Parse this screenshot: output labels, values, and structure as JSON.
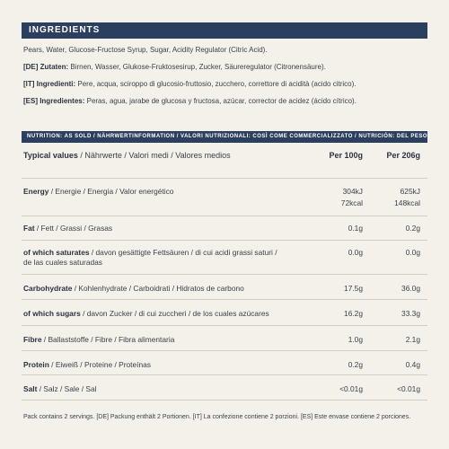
{
  "ingredients_header": "INGREDIENTS",
  "ingredients": {
    "en": "Pears, Water, Glucose-Fructose Syrup, Sugar, Acidity Regulator (Citric Acid).",
    "de_label": "[DE] Zutaten:",
    "de_text": " Birnen, Wasser, Glukose-Fruktosesirup, Zucker, Säureregulator (Citronensäure).",
    "it_label": "[IT] Ingredienti:",
    "it_text": " Pere, acqua, sciroppo di glucosio-fruttosio, zucchero, correttore di acidità (acido citrico).",
    "es_label": "[ES] Ingredientes:",
    "es_text": " Peras, agua, jarabe de glucosa y fructosa, azúcar, corrector de acidez (ácido cítrico)."
  },
  "nutrition_header": "NUTRITION: AS SOLD / NÄHRWERTINFORMATION / VALORI NUTRIZIONALI: COSÌ COME COMMERCIALIZZATO / NUTRICIÓN: DEL PESO NETO:",
  "table": {
    "head_label_bold": "Typical values",
    "head_label_rest": " / Nährwerte / Valori medi / Valores medios",
    "col_100": "Per 100g",
    "col_206": "Per 206g",
    "rows": [
      {
        "bold": "Energy",
        "rest": " / Energie / Energia / Valor energético",
        "v100": "304kJ",
        "v100b": "72kcal",
        "v206": "625kJ",
        "v206b": "148kcal"
      },
      {
        "bold": "Fat",
        "rest": " / Fett / Grassi / Grasas",
        "v100": "0.1g",
        "v206": "0.2g"
      },
      {
        "bold": "of which saturates",
        "rest": " / davon gesättigte Fettsäuren / di cui acidi grassi saturi /",
        "rest2": "de las cuales saturadas",
        "v100": "0.0g",
        "v206": "0.0g"
      },
      {
        "bold": "Carbohydrate",
        "rest": " / Kohlenhydrate / Carboidrati / Hidratos de carbono",
        "v100": "17.5g",
        "v206": "36.0g"
      },
      {
        "bold": "of which sugars",
        "rest": " / davon Zucker / di cui zuccheri / de los cuales azúcares",
        "v100": "16.2g",
        "v206": "33.3g"
      },
      {
        "bold": "Fibre",
        "rest": " / Ballaststoffe / Fibre / Fibra alimentaria",
        "v100": "1.0g",
        "v206": "2.1g"
      },
      {
        "bold": "Protein",
        "rest": " / Eiweiß / Proteine / Proteínas",
        "v100": "0.2g",
        "v206": "0.4g"
      },
      {
        "bold": "Salt",
        "rest": " / Salz / Sale / Sal",
        "v100": "<0.01g",
        "v206": "<0.01g"
      }
    ]
  },
  "footnote": "Pack contains 2 servings. [DE] Packung enthält 2 Portionen. [IT] La confezione contiene 2 porzioni. [ES] Este envase contiene 2 porciones."
}
